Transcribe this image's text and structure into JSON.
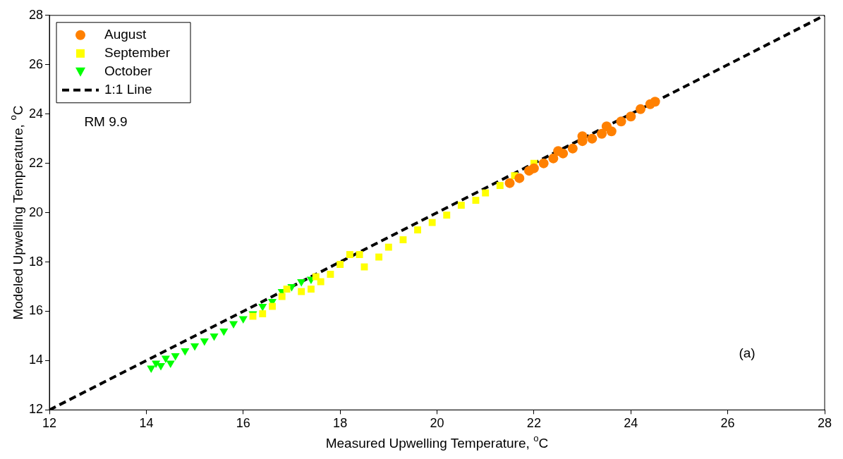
{
  "chart_data": {
    "type": "scatter",
    "xlabel": "Measured Upwelling Temperature, $^{o}$C",
    "ylabel": "Modeled Upwelling Temperature, $^{o}$C",
    "xlim": [
      12,
      28
    ],
    "ylim": [
      12,
      28
    ],
    "xticks": [
      12,
      14,
      16,
      18,
      20,
      22,
      24,
      26,
      28
    ],
    "yticks": [
      12,
      14,
      16,
      18,
      20,
      22,
      24,
      26,
      28
    ],
    "grid": false,
    "legend": "top left",
    "annotations": [
      "RM 9.9",
      "(a)"
    ],
    "series": [
      {
        "name": "August",
        "color": "#ff8000",
        "marker": "circle",
        "x": [
          21.5,
          21.7,
          21.9,
          22.0,
          22.2,
          22.4,
          22.5,
          22.6,
          22.8,
          23.0,
          23.0,
          23.2,
          23.4,
          23.5,
          23.6,
          23.8,
          24.0,
          24.2,
          24.4,
          24.5
        ],
        "values": [
          21.2,
          21.4,
          21.7,
          21.8,
          22.0,
          22.2,
          22.5,
          22.4,
          22.6,
          22.9,
          23.1,
          23.0,
          23.2,
          23.5,
          23.3,
          23.7,
          23.9,
          24.2,
          24.4,
          24.5
        ]
      },
      {
        "name": "September",
        "color": "#ffff00",
        "marker": "square",
        "x": [
          16.2,
          16.4,
          16.6,
          16.8,
          16.9,
          17.2,
          17.4,
          17.5,
          17.6,
          17.8,
          18.0,
          18.2,
          18.4,
          18.5,
          18.8,
          19.0,
          19.3,
          19.6,
          19.9,
          20.2,
          20.5,
          20.8,
          21.0,
          21.3,
          21.6,
          22.0
        ],
        "values": [
          15.8,
          15.9,
          16.2,
          16.6,
          16.9,
          16.8,
          16.9,
          17.4,
          17.2,
          17.5,
          17.9,
          18.3,
          18.3,
          17.8,
          18.2,
          18.6,
          18.9,
          19.3,
          19.6,
          19.9,
          20.3,
          20.5,
          20.8,
          21.1,
          21.5,
          22.0
        ]
      },
      {
        "name": "October",
        "color": "#00ff00",
        "marker": "triangle",
        "x": [
          14.1,
          14.2,
          14.3,
          14.4,
          14.5,
          14.6,
          14.8,
          15.0,
          15.2,
          15.4,
          15.6,
          15.8,
          16.0,
          16.2,
          16.4,
          16.6,
          16.8,
          17.0,
          17.2,
          17.4
        ],
        "values": [
          13.7,
          13.9,
          13.8,
          14.1,
          13.9,
          14.2,
          14.4,
          14.6,
          14.8,
          15.0,
          15.2,
          15.5,
          15.7,
          15.9,
          16.2,
          16.4,
          16.8,
          17.0,
          17.2,
          17.3
        ]
      },
      {
        "name": "1:1 Line",
        "type": "line",
        "color": "#000000",
        "marker": "none",
        "line_style": "dashed",
        "x": [
          12,
          28
        ],
        "values": [
          12,
          28
        ]
      }
    ]
  }
}
